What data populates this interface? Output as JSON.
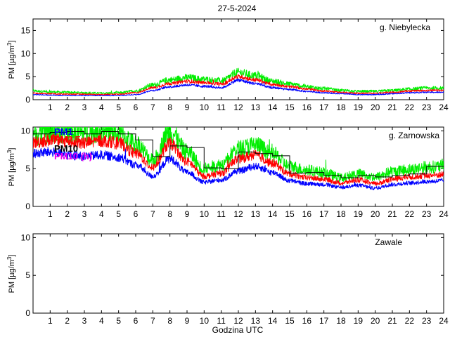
{
  "figure": {
    "title": "27-5-2024",
    "xlabel": "Godzina UTC"
  },
  "colors": {
    "PM1": "#0000ff",
    "PM2.5": "#ff0000",
    "PM10": "#00ee00",
    "hourly": "#000000",
    "PM10_legend_alt": "#ee00ee"
  },
  "legend": {
    "labels": [
      "PM1",
      "PM2.5",
      "PM10",
      "PM10 (h)"
    ],
    "colors": [
      "#0000ff",
      "#ff0000",
      "#000000",
      "#ee00ee"
    ]
  },
  "chart_data": [
    {
      "type": "line",
      "title": "g. Niebylecka",
      "ylabel": "PM [µg/m3]",
      "xlim": [
        0,
        24
      ],
      "ylim": [
        0,
        17.5
      ],
      "yticks": [
        0,
        5,
        10,
        15
      ],
      "xticks": [
        1,
        2,
        3,
        4,
        5,
        6,
        7,
        8,
        9,
        10,
        11,
        12,
        13,
        14,
        15,
        16,
        17,
        18,
        19,
        20,
        21,
        22,
        23,
        24
      ],
      "x_hours": [
        0,
        1,
        2,
        3,
        4,
        5,
        6,
        7,
        8,
        9,
        10,
        11,
        12,
        13,
        14,
        15,
        16,
        17,
        18,
        19,
        20,
        21,
        22,
        23,
        24
      ],
      "series": [
        {
          "name": "PM1",
          "values": [
            1.1,
            1.0,
            0.9,
            0.9,
            0.9,
            0.9,
            1.1,
            2.0,
            2.8,
            3.2,
            2.9,
            2.6,
            4.2,
            3.5,
            2.6,
            2.2,
            1.8,
            1.5,
            1.3,
            1.1,
            1.1,
            1.3,
            1.5,
            1.6,
            1.6
          ]
        },
        {
          "name": "PM2.5",
          "values": [
            1.4,
            1.3,
            1.2,
            1.2,
            1.1,
            1.2,
            1.5,
            2.6,
            3.5,
            4.0,
            3.7,
            3.4,
            5.0,
            4.3,
            3.3,
            2.8,
            2.3,
            1.9,
            1.6,
            1.4,
            1.4,
            1.6,
            1.9,
            2.0,
            2.0
          ]
        },
        {
          "name": "PM10",
          "values": [
            1.9,
            1.7,
            1.6,
            1.5,
            1.4,
            1.5,
            1.9,
            3.2,
            4.3,
            4.8,
            4.4,
            4.1,
            5.9,
            5.2,
            4.0,
            3.4,
            2.8,
            2.4,
            2.0,
            1.8,
            1.8,
            2.0,
            2.3,
            2.5,
            2.5
          ]
        }
      ]
    },
    {
      "type": "line",
      "title": "g. Zarnowska",
      "ylabel": "PM [µg/m3]",
      "xlim": [
        0,
        24
      ],
      "ylim": [
        0,
        10.5
      ],
      "yticks": [
        0,
        5,
        10
      ],
      "xticks": [
        1,
        2,
        3,
        4,
        5,
        6,
        7,
        8,
        9,
        10,
        11,
        12,
        13,
        14,
        15,
        16,
        17,
        18,
        19,
        20,
        21,
        22,
        23,
        24
      ],
      "x_hours": [
        0,
        1,
        2,
        3,
        4,
        5,
        6,
        7,
        8,
        9,
        10,
        11,
        12,
        13,
        14,
        15,
        16,
        17,
        18,
        19,
        20,
        21,
        22,
        23,
        24
      ],
      "series": [
        {
          "name": "PM1",
          "values": [
            7.0,
            7.2,
            6.8,
            6.6,
            6.8,
            6.5,
            5.5,
            4.0,
            6.3,
            4.5,
            3.2,
            3.5,
            4.7,
            5.3,
            4.5,
            3.4,
            3.0,
            2.9,
            2.5,
            2.8,
            2.4,
            2.9,
            3.1,
            3.3,
            3.4
          ]
        },
        {
          "name": "PM2.5",
          "values": [
            8.5,
            8.8,
            8.6,
            8.4,
            8.7,
            8.4,
            7.0,
            5.2,
            8.3,
            5.9,
            4.0,
            4.4,
            6.3,
            6.8,
            5.7,
            4.3,
            3.8,
            3.6,
            3.1,
            3.5,
            3.0,
            3.6,
            3.9,
            4.1,
            4.2
          ]
        },
        {
          "name": "PM10",
          "values": [
            9.5,
            9.9,
            9.9,
            9.7,
            10.0,
            9.6,
            8.3,
            6.1,
            9.9,
            7.2,
            5.0,
            5.5,
            7.6,
            8.1,
            6.9,
            5.3,
            4.8,
            4.5,
            3.8,
            4.3,
            3.9,
            4.6,
            4.9,
            5.2,
            5.3
          ]
        },
        {
          "name": "PM10 hourly",
          "step": true,
          "values": [
            9.6,
            9.8,
            9.9,
            9.6,
            9.9,
            9.6,
            8.8,
            6.6,
            8.0,
            7.8,
            5.1,
            5.0,
            7.2,
            7.0,
            6.7,
            4.4,
            4.5,
            4.1,
            3.8,
            4.1,
            3.9,
            4.1,
            4.3,
            5.3,
            5.3
          ]
        }
      ]
    },
    {
      "type": "line",
      "title": "Zawale",
      "ylabel": "PM [µg/m3]",
      "xlim": [
        0,
        24
      ],
      "ylim": [
        0,
        10.5
      ],
      "yticks": [
        0,
        5,
        10
      ],
      "xticks": [
        1,
        2,
        3,
        4,
        5,
        6,
        7,
        8,
        9,
        10,
        11,
        12,
        13,
        14,
        15,
        16,
        17,
        18,
        19,
        20,
        21,
        22,
        23,
        24
      ],
      "series": []
    }
  ]
}
